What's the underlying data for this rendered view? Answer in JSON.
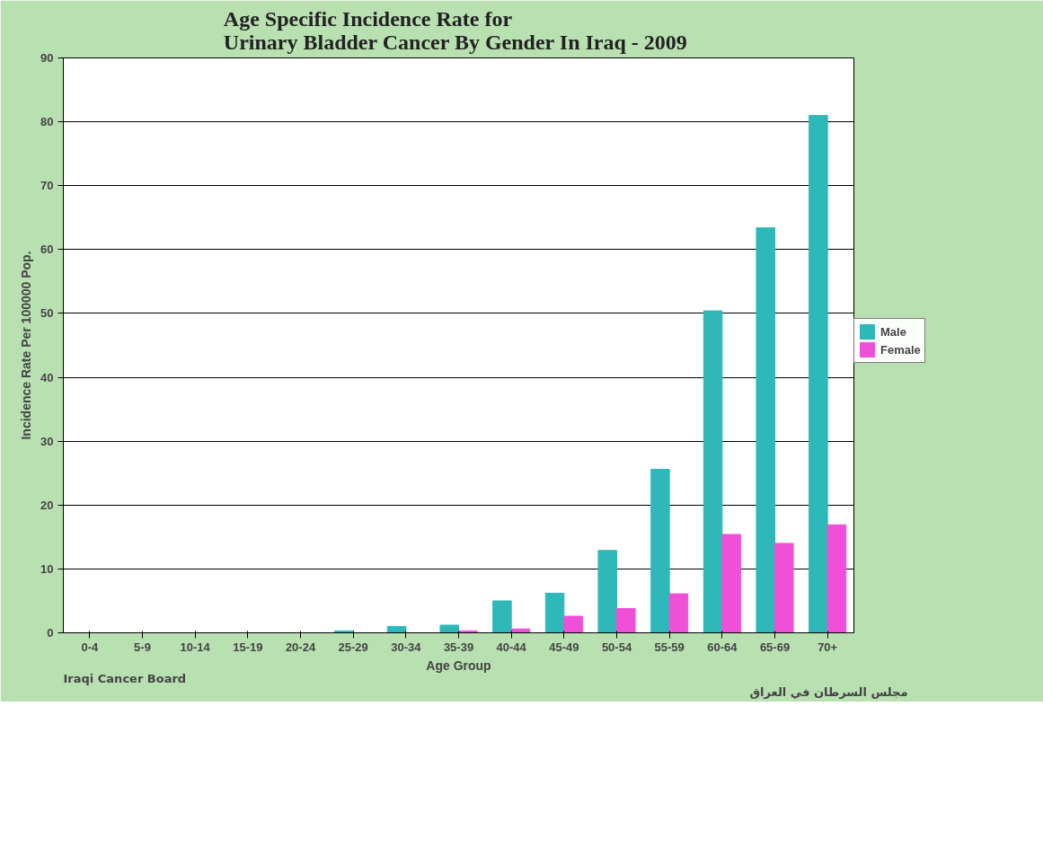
{
  "chart_data": {
    "type": "bar",
    "title": "Age Specific Incidence Rate for\nUrinary Bladder Cancer By Gender In Iraq  - 2009",
    "xlabel": "Age Group",
    "ylabel": "Incidence Rate Per 100000 Pop.",
    "categories": [
      "0-4",
      "5-9",
      "10-14",
      "15-19",
      "20-24",
      "25-29",
      "30-34",
      "35-39",
      "40-44",
      "45-49",
      "50-54",
      "55-59",
      "60-64",
      "65-69",
      "70+"
    ],
    "series": [
      {
        "name": "Male",
        "color": "#2fb8b8",
        "values": [
          0,
          0,
          0,
          0,
          0,
          0.3,
          1.0,
          1.2,
          5.0,
          6.2,
          12.9,
          25.6,
          50.4,
          63.4,
          81.0
        ]
      },
      {
        "name": "Female",
        "color": "#f050d8",
        "values": [
          0,
          0,
          0,
          0,
          0,
          0,
          0,
          0.3,
          0.6,
          2.6,
          3.8,
          6.1,
          15.4,
          14.0,
          16.9
        ]
      }
    ],
    "ylim": [
      0,
      90
    ],
    "yticks": [
      0,
      10,
      20,
      30,
      40,
      50,
      60,
      70,
      80,
      90
    ],
    "grid": "y",
    "legend": "right",
    "annotations": [
      "Iraqi Cancer Board",
      "مجلس السرطان في العراق"
    ]
  }
}
